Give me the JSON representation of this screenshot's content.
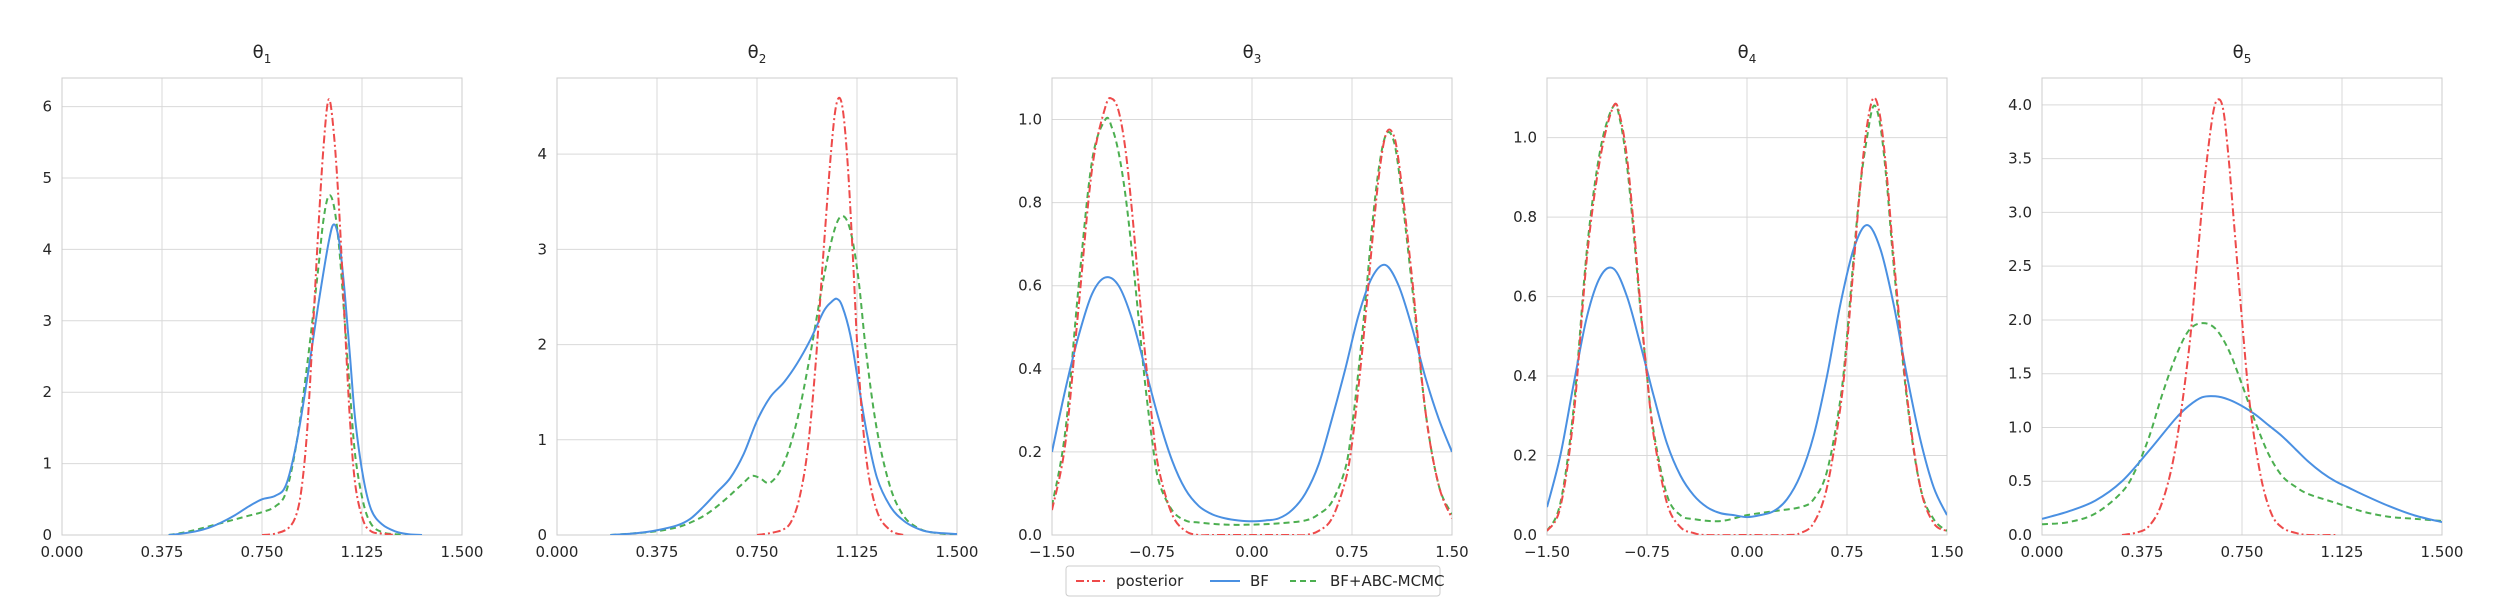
{
  "chart_data": [
    {
      "type": "line",
      "title": "θ1",
      "title_base": "θ",
      "title_sub": "1",
      "xlim": [
        0,
        1.5
      ],
      "ylim": [
        0,
        6.4
      ],
      "xticks": [
        "0.000",
        "0.375",
        "0.750",
        "1.125",
        "1.500"
      ],
      "yticks": [
        "0",
        "1",
        "2",
        "3",
        "4",
        "5",
        "6"
      ],
      "grid": true,
      "series": [
        {
          "name": "posterior",
          "x": [
            0.75,
            0.8,
            0.85,
            0.88,
            0.9,
            0.92,
            0.94,
            0.96,
            0.98,
            1.0,
            1.02,
            1.04,
            1.06,
            1.08,
            1.1,
            1.13,
            1.16,
            1.2,
            1.25
          ],
          "y": [
            0.0,
            0.02,
            0.1,
            0.3,
            0.7,
            1.5,
            2.8,
            4.2,
            5.4,
            6.1,
            5.6,
            4.5,
            3.0,
            1.6,
            0.7,
            0.2,
            0.05,
            0.02,
            0.0
          ]
        },
        {
          "name": "BF",
          "x": [
            0.4,
            0.45,
            0.5,
            0.55,
            0.6,
            0.65,
            0.7,
            0.75,
            0.8,
            0.84,
            0.88,
            0.92,
            0.96,
            1.0,
            1.02,
            1.04,
            1.06,
            1.08,
            1.1,
            1.13,
            1.16,
            1.2,
            1.25,
            1.3,
            1.35
          ],
          "y": [
            0.0,
            0.02,
            0.05,
            0.1,
            0.18,
            0.28,
            0.4,
            0.5,
            0.55,
            0.7,
            1.3,
            2.2,
            3.2,
            4.1,
            4.35,
            4.1,
            3.4,
            2.5,
            1.6,
            0.8,
            0.35,
            0.15,
            0.05,
            0.01,
            0.0
          ]
        },
        {
          "name": "BF+ABC-MCMC",
          "x": [
            0.4,
            0.45,
            0.5,
            0.55,
            0.6,
            0.65,
            0.7,
            0.75,
            0.8,
            0.84,
            0.88,
            0.92,
            0.96,
            0.98,
            1.0,
            1.02,
            1.04,
            1.06,
            1.08,
            1.1,
            1.13,
            1.16,
            1.2,
            1.25,
            1.3,
            1.35
          ],
          "y": [
            0.0,
            0.03,
            0.07,
            0.12,
            0.17,
            0.22,
            0.27,
            0.32,
            0.4,
            0.6,
            1.3,
            2.4,
            3.7,
            4.4,
            4.75,
            4.6,
            4.0,
            3.0,
            2.0,
            1.1,
            0.45,
            0.15,
            0.04,
            0.01,
            0.0,
            0.0
          ]
        }
      ]
    },
    {
      "type": "line",
      "title": "θ2",
      "title_base": "θ",
      "title_sub": "2",
      "xlim": [
        0,
        1.5
      ],
      "ylim": [
        0,
        4.8
      ],
      "xticks": [
        "0.000",
        "0.375",
        "0.750",
        "1.125",
        "1.500"
      ],
      "yticks": [
        "0",
        "1",
        "2",
        "3",
        "4"
      ],
      "grid": true,
      "series": [
        {
          "name": "posterior",
          "x": [
            0.75,
            0.8,
            0.85,
            0.88,
            0.91,
            0.94,
            0.97,
            1.0,
            1.03,
            1.05,
            1.07,
            1.09,
            1.11,
            1.13,
            1.16,
            1.2,
            1.25,
            1.3
          ],
          "y": [
            0.0,
            0.02,
            0.06,
            0.15,
            0.4,
            0.9,
            1.8,
            3.0,
            4.1,
            4.55,
            4.5,
            3.9,
            2.9,
            1.8,
            0.8,
            0.25,
            0.05,
            0.0
          ]
        },
        {
          "name": "BF",
          "x": [
            0.2,
            0.3,
            0.375,
            0.45,
            0.5,
            0.55,
            0.6,
            0.65,
            0.7,
            0.75,
            0.8,
            0.85,
            0.9,
            0.95,
            1.0,
            1.03,
            1.05,
            1.07,
            1.1,
            1.13,
            1.16,
            1.2,
            1.25,
            1.3,
            1.35,
            1.4,
            1.5
          ],
          "y": [
            0.0,
            0.02,
            0.05,
            0.1,
            0.17,
            0.3,
            0.45,
            0.6,
            0.85,
            1.2,
            1.45,
            1.6,
            1.8,
            2.05,
            2.35,
            2.45,
            2.48,
            2.4,
            2.1,
            1.6,
            1.1,
            0.6,
            0.3,
            0.15,
            0.07,
            0.03,
            0.01
          ]
        },
        {
          "name": "BF+ABC-MCMC",
          "x": [
            0.2,
            0.3,
            0.375,
            0.45,
            0.5,
            0.55,
            0.6,
            0.65,
            0.7,
            0.73,
            0.76,
            0.8,
            0.85,
            0.9,
            0.95,
            1.0,
            1.04,
            1.07,
            1.1,
            1.13,
            1.16,
            1.2,
            1.25,
            1.3,
            1.35,
            1.4,
            1.5
          ],
          "y": [
            0.0,
            0.02,
            0.04,
            0.08,
            0.13,
            0.2,
            0.3,
            0.42,
            0.55,
            0.62,
            0.6,
            0.55,
            0.75,
            1.2,
            1.9,
            2.7,
            3.2,
            3.35,
            3.2,
            2.7,
            1.9,
            1.1,
            0.5,
            0.2,
            0.08,
            0.03,
            0.0
          ]
        }
      ]
    },
    {
      "type": "line",
      "title": "θ3",
      "title_base": "θ",
      "title_sub": "3",
      "xlim": [
        -1.5,
        1.5
      ],
      "ylim": [
        0,
        1.1
      ],
      "xticks": [
        "−1.50",
        "−0.75",
        "0.00",
        "0.75",
        "1.50"
      ],
      "yticks": [
        "0.0",
        "0.2",
        "0.4",
        "0.6",
        "0.8",
        "1.0"
      ],
      "grid": true,
      "series": [
        {
          "name": "posterior",
          "x": [
            -1.5,
            -1.4,
            -1.3,
            -1.2,
            -1.1,
            -1.05,
            -1.0,
            -0.95,
            -0.9,
            -0.85,
            -0.8,
            -0.75,
            -0.7,
            -0.6,
            -0.5,
            -0.4,
            -0.3,
            0.0,
            0.3,
            0.4,
            0.5,
            0.6,
            0.7,
            0.75,
            0.8,
            0.85,
            0.9,
            0.95,
            1.0,
            1.05,
            1.1,
            1.2,
            1.3,
            1.4,
            1.5
          ],
          "y": [
            0.06,
            0.22,
            0.55,
            0.88,
            1.03,
            1.05,
            1.02,
            0.93,
            0.78,
            0.6,
            0.43,
            0.28,
            0.16,
            0.05,
            0.01,
            0.0,
            0.0,
            0.0,
            0.0,
            0.0,
            0.01,
            0.04,
            0.13,
            0.22,
            0.36,
            0.52,
            0.7,
            0.86,
            0.96,
            0.97,
            0.9,
            0.62,
            0.3,
            0.12,
            0.04
          ]
        },
        {
          "name": "BF",
          "x": [
            -1.5,
            -1.4,
            -1.3,
            -1.2,
            -1.1,
            -1.0,
            -0.9,
            -0.8,
            -0.7,
            -0.6,
            -0.5,
            -0.4,
            -0.3,
            -0.2,
            -0.1,
            0.0,
            0.1,
            0.2,
            0.3,
            0.4,
            0.5,
            0.6,
            0.7,
            0.8,
            0.9,
            1.0,
            1.1,
            1.2,
            1.3,
            1.4,
            1.5
          ],
          "y": [
            0.2,
            0.35,
            0.48,
            0.58,
            0.62,
            0.6,
            0.52,
            0.4,
            0.28,
            0.18,
            0.11,
            0.07,
            0.05,
            0.04,
            0.035,
            0.033,
            0.035,
            0.04,
            0.06,
            0.1,
            0.17,
            0.28,
            0.4,
            0.53,
            0.62,
            0.65,
            0.6,
            0.5,
            0.38,
            0.28,
            0.2
          ]
        },
        {
          "name": "BF+ABC-MCMC",
          "x": [
            -1.5,
            -1.4,
            -1.3,
            -1.2,
            -1.1,
            -1.05,
            -1.0,
            -0.95,
            -0.9,
            -0.85,
            -0.8,
            -0.75,
            -0.7,
            -0.6,
            -0.5,
            -0.4,
            -0.2,
            0.0,
            0.2,
            0.4,
            0.5,
            0.6,
            0.7,
            0.75,
            0.8,
            0.85,
            0.9,
            0.95,
            1.0,
            1.05,
            1.1,
            1.2,
            1.3,
            1.4,
            1.5
          ],
          "y": [
            0.07,
            0.25,
            0.6,
            0.9,
            1.0,
            0.98,
            0.92,
            0.82,
            0.68,
            0.52,
            0.36,
            0.23,
            0.13,
            0.06,
            0.035,
            0.03,
            0.025,
            0.025,
            0.028,
            0.035,
            0.05,
            0.08,
            0.16,
            0.26,
            0.4,
            0.56,
            0.74,
            0.88,
            0.96,
            0.96,
            0.88,
            0.6,
            0.3,
            0.12,
            0.05
          ]
        }
      ]
    },
    {
      "type": "line",
      "title": "θ4",
      "title_base": "θ",
      "title_sub": "4",
      "xlim": [
        -1.5,
        1.5
      ],
      "ylim": [
        0,
        1.15
      ],
      "xticks": [
        "−1.50",
        "−0.75",
        "0.00",
        "0.75",
        "1.50"
      ],
      "yticks": [
        "0.0",
        "0.2",
        "0.4",
        "0.6",
        "0.8",
        "1.0"
      ],
      "grid": true,
      "series": [
        {
          "name": "posterior",
          "x": [
            -1.5,
            -1.4,
            -1.3,
            -1.2,
            -1.1,
            -1.0,
            -0.95,
            -0.9,
            -0.85,
            -0.8,
            -0.75,
            -0.7,
            -0.6,
            -0.5,
            -0.4,
            -0.3,
            0.0,
            0.3,
            0.4,
            0.5,
            0.6,
            0.7,
            0.75,
            0.8,
            0.85,
            0.9,
            0.95,
            1.0,
            1.05,
            1.1,
            1.2,
            1.3,
            1.4,
            1.5
          ],
          "y": [
            0.01,
            0.07,
            0.3,
            0.7,
            0.95,
            1.08,
            1.05,
            0.95,
            0.78,
            0.58,
            0.4,
            0.25,
            0.08,
            0.02,
            0.005,
            0.0,
            0.0,
            0.0,
            0.005,
            0.03,
            0.12,
            0.32,
            0.48,
            0.68,
            0.88,
            1.03,
            1.1,
            1.05,
            0.9,
            0.7,
            0.35,
            0.12,
            0.03,
            0.01
          ]
        },
        {
          "name": "BF",
          "x": [
            -1.5,
            -1.4,
            -1.3,
            -1.2,
            -1.1,
            -1.0,
            -0.9,
            -0.8,
            -0.7,
            -0.6,
            -0.5,
            -0.4,
            -0.3,
            -0.2,
            -0.1,
            0.0,
            0.1,
            0.2,
            0.3,
            0.4,
            0.5,
            0.6,
            0.7,
            0.8,
            0.9,
            1.0,
            1.1,
            1.2,
            1.3,
            1.4,
            1.5
          ],
          "y": [
            0.07,
            0.2,
            0.38,
            0.55,
            0.65,
            0.67,
            0.6,
            0.48,
            0.35,
            0.23,
            0.15,
            0.1,
            0.07,
            0.055,
            0.05,
            0.045,
            0.05,
            0.06,
            0.09,
            0.15,
            0.25,
            0.4,
            0.58,
            0.72,
            0.78,
            0.72,
            0.58,
            0.4,
            0.24,
            0.12,
            0.05
          ]
        },
        {
          "name": "BF+ABC-MCMC",
          "x": [
            -1.5,
            -1.4,
            -1.3,
            -1.2,
            -1.1,
            -1.0,
            -0.95,
            -0.9,
            -0.85,
            -0.8,
            -0.75,
            -0.7,
            -0.6,
            -0.5,
            -0.4,
            -0.2,
            0.0,
            0.2,
            0.4,
            0.5,
            0.6,
            0.7,
            0.75,
            0.8,
            0.85,
            0.9,
            0.95,
            1.0,
            1.05,
            1.1,
            1.2,
            1.3,
            1.4,
            1.5
          ],
          "y": [
            0.01,
            0.08,
            0.32,
            0.72,
            0.97,
            1.08,
            1.04,
            0.93,
            0.76,
            0.57,
            0.4,
            0.26,
            0.1,
            0.05,
            0.04,
            0.035,
            0.05,
            0.06,
            0.07,
            0.09,
            0.16,
            0.34,
            0.5,
            0.7,
            0.88,
            1.0,
            1.08,
            1.03,
            0.88,
            0.68,
            0.34,
            0.12,
            0.04,
            0.01
          ]
        }
      ]
    },
    {
      "type": "line",
      "title": "θ5",
      "title_base": "θ",
      "title_sub": "5",
      "xlim": [
        0,
        1.5
      ],
      "ylim": [
        0,
        4.25
      ],
      "xticks": [
        "0.000",
        "0.375",
        "0.750",
        "1.125",
        "1.500"
      ],
      "yticks": [
        "0.0",
        "0.5",
        "1.0",
        "1.5",
        "2.0",
        "2.5",
        "3.0",
        "3.5",
        "4.0"
      ],
      "grid": true,
      "series": [
        {
          "name": "posterior",
          "x": [
            0.3,
            0.35,
            0.4,
            0.45,
            0.5,
            0.55,
            0.58,
            0.61,
            0.64,
            0.66,
            0.68,
            0.7,
            0.72,
            0.75,
            0.78,
            0.82,
            0.86,
            0.9,
            0.95,
            1.0,
            1.1
          ],
          "y": [
            0.0,
            0.02,
            0.08,
            0.3,
            0.8,
            1.7,
            2.5,
            3.3,
            3.9,
            4.05,
            3.95,
            3.5,
            2.9,
            2.0,
            1.2,
            0.55,
            0.2,
            0.07,
            0.02,
            0.0,
            0.0
          ]
        },
        {
          "name": "BF",
          "x": [
            0.0,
            0.1,
            0.2,
            0.3,
            0.4,
            0.5,
            0.55,
            0.6,
            0.65,
            0.7,
            0.75,
            0.8,
            0.85,
            0.9,
            0.95,
            1.0,
            1.05,
            1.1,
            1.15,
            1.2,
            1.3,
            1.4,
            1.5
          ],
          "y": [
            0.15,
            0.22,
            0.32,
            0.5,
            0.78,
            1.08,
            1.2,
            1.28,
            1.29,
            1.26,
            1.2,
            1.12,
            1.02,
            0.92,
            0.8,
            0.68,
            0.58,
            0.5,
            0.44,
            0.38,
            0.27,
            0.18,
            0.12
          ]
        },
        {
          "name": "BF+ABC-MCMC",
          "x": [
            0.0,
            0.1,
            0.2,
            0.3,
            0.35,
            0.4,
            0.45,
            0.5,
            0.55,
            0.6,
            0.65,
            0.7,
            0.75,
            0.8,
            0.85,
            0.9,
            0.95,
            1.0,
            1.1,
            1.2,
            1.3,
            1.4,
            1.5
          ],
          "y": [
            0.1,
            0.12,
            0.2,
            0.4,
            0.6,
            0.9,
            1.3,
            1.65,
            1.9,
            1.97,
            1.92,
            1.72,
            1.4,
            1.05,
            0.75,
            0.55,
            0.45,
            0.38,
            0.3,
            0.22,
            0.17,
            0.15,
            0.13
          ]
        }
      ]
    }
  ],
  "legend": {
    "placement": "bottom-center",
    "entries": [
      {
        "label": "posterior",
        "color": "#ee4a4a",
        "dash": "dashdot"
      },
      {
        "label": "BF",
        "color": "#4a90e2",
        "dash": "solid"
      },
      {
        "label": "BF+ABC-MCMC",
        "color": "#4caf50",
        "dash": "dashed"
      }
    ]
  }
}
